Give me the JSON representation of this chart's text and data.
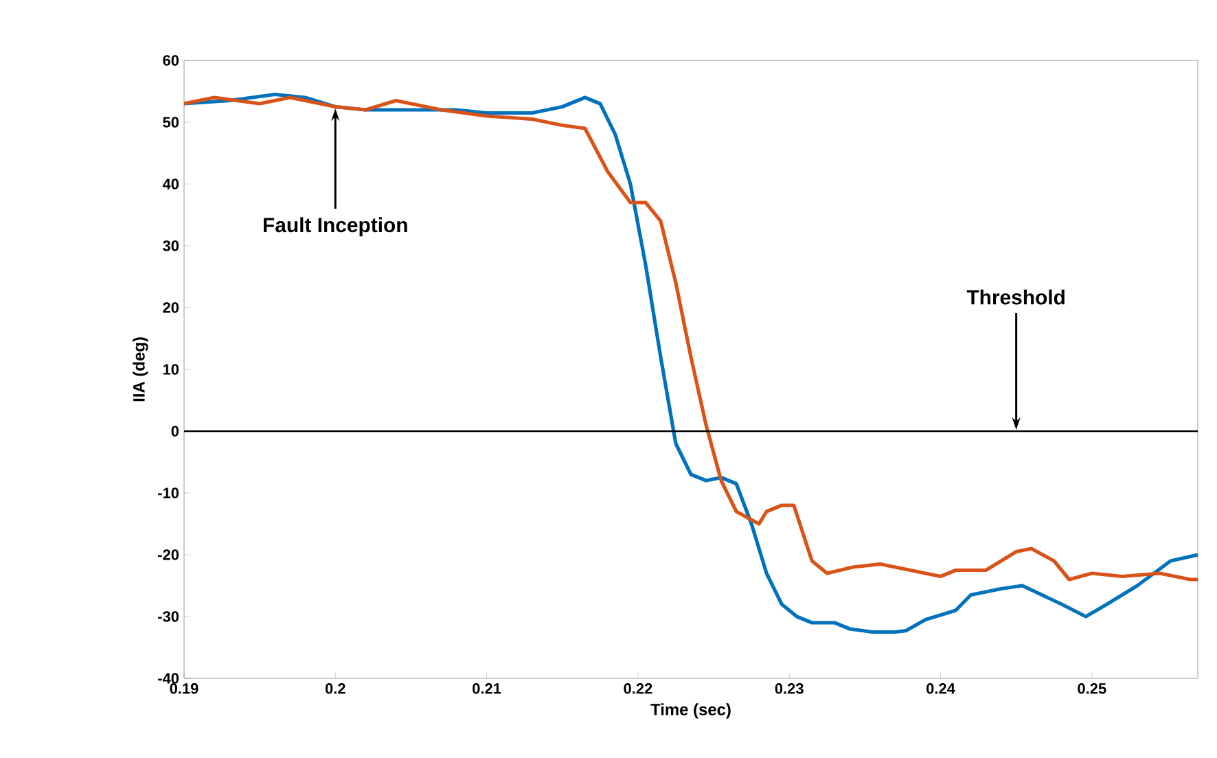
{
  "chart_data": {
    "type": "line",
    "xlabel": "Time (sec)",
    "ylabel": "IIA (deg)",
    "xlim": [
      0.19,
      0.257
    ],
    "ylim": [
      -40,
      60
    ],
    "xticks": [
      0.19,
      0.2,
      0.21,
      0.22,
      0.23,
      0.24,
      0.25
    ],
    "yticks": [
      -40,
      -30,
      -20,
      -10,
      0,
      10,
      20,
      30,
      40,
      50,
      60
    ],
    "grid": false,
    "line_style": "solid",
    "marker": "none",
    "series": [
      {
        "color": "#0072bd",
        "x": [
          0.19,
          0.193,
          0.196,
          0.198,
          0.2,
          0.202,
          0.205,
          0.208,
          0.21,
          0.213,
          0.215,
          0.2165,
          0.2175,
          0.2185,
          0.2195,
          0.2205,
          0.2215,
          0.2225,
          0.2235,
          0.2245,
          0.2255,
          0.2265,
          0.2275,
          0.2285,
          0.2295,
          0.2305,
          0.2315,
          0.233,
          0.234,
          0.2355,
          0.237,
          0.2377,
          0.239,
          0.241,
          0.242,
          0.244,
          0.2454,
          0.248,
          0.2496,
          0.251,
          0.253,
          0.2552,
          0.257
        ],
        "values": [
          53,
          53.5,
          54.5,
          54,
          52.5,
          52,
          52,
          52,
          51.5,
          51.5,
          52.5,
          54,
          53,
          48,
          40,
          27,
          12,
          -2,
          -7,
          -8,
          -7.5,
          -8.5,
          -15,
          -23,
          -28,
          -30,
          -31,
          -31,
          -32,
          -32.5,
          -32.5,
          -32.3,
          -30.5,
          -29,
          -26.5,
          -25.5,
          -25,
          -28,
          -30,
          -28,
          -25,
          -21,
          -20
        ]
      },
      {
        "color": "#d95319",
        "x": [
          0.19,
          0.192,
          0.195,
          0.197,
          0.2,
          0.202,
          0.204,
          0.207,
          0.21,
          0.213,
          0.215,
          0.2165,
          0.218,
          0.2195,
          0.2205,
          0.2215,
          0.2225,
          0.2235,
          0.2245,
          0.2255,
          0.2265,
          0.228,
          0.2285,
          0.2295,
          0.2303,
          0.2315,
          0.2325,
          0.2342,
          0.236,
          0.238,
          0.24,
          0.241,
          0.243,
          0.245,
          0.246,
          0.2475,
          0.2485,
          0.25,
          0.252,
          0.2545,
          0.2565,
          0.257
        ],
        "values": [
          53,
          54,
          53,
          54,
          52.5,
          52,
          53.5,
          52,
          51,
          50.5,
          49.5,
          49,
          42,
          37,
          37,
          34,
          24,
          12,
          1,
          -8,
          -13,
          -15,
          -13,
          -12,
          -12,
          -21,
          -23,
          -22,
          -21.5,
          -22.5,
          -23.5,
          -22.5,
          -22.5,
          -19.5,
          -19,
          -21,
          -24,
          -23,
          -23.5,
          -23,
          -24,
          -24
        ]
      }
    ],
    "ref_lines": [
      {
        "axis": "y",
        "value": 0,
        "color": "#000000"
      }
    ],
    "annotations": [
      {
        "text": "Fault Inception",
        "x": 0.2,
        "y": 52
      },
      {
        "text": "Threshold",
        "x": 0.245,
        "y": 0
      }
    ]
  }
}
